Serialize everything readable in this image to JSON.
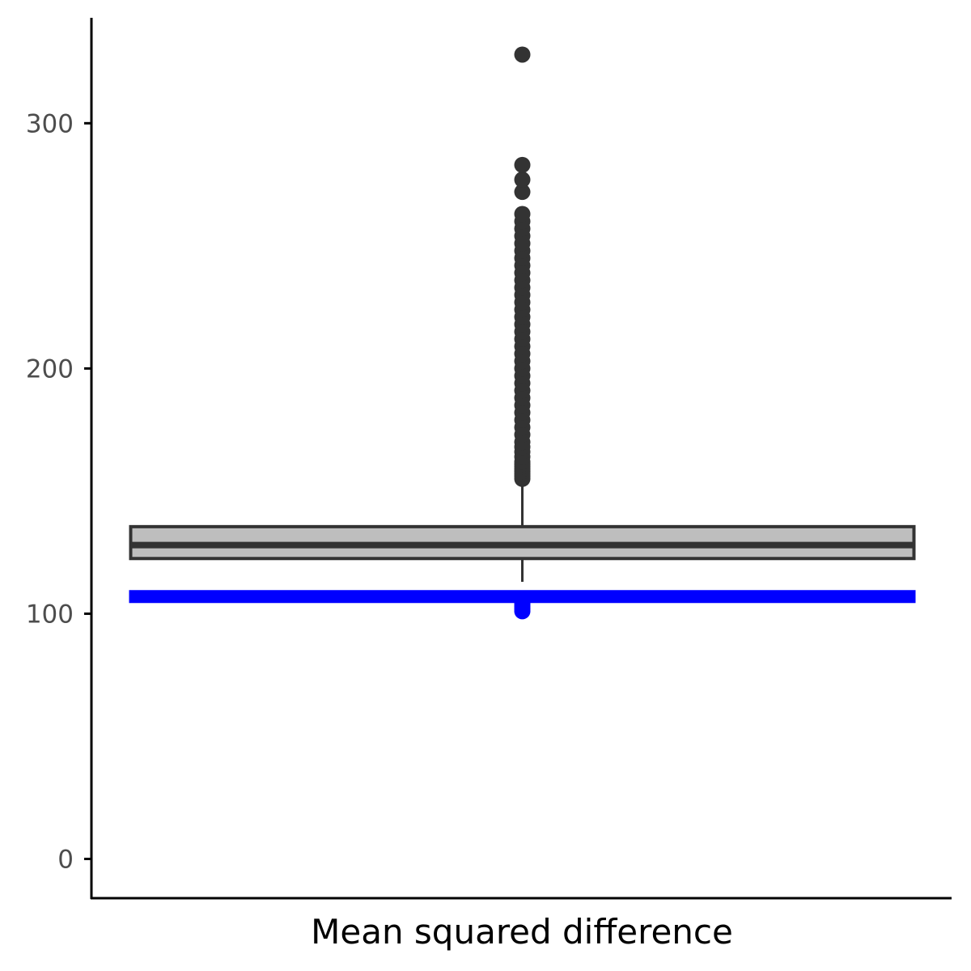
{
  "chart_data": {
    "type": "box",
    "xlabel": "Mean squared difference",
    "ylabel": "",
    "ylim": [
      -16,
      343
    ],
    "y_ticks": [
      0,
      100,
      200,
      300
    ],
    "y_tick_labels": [
      "0",
      "100",
      "200",
      "300"
    ],
    "grid": false,
    "box": {
      "q1": 122.5,
      "median": 128,
      "q3": 135.5,
      "whisker_low": 113,
      "whisker_high": 155
    },
    "outliers_high": [
      155,
      156,
      157,
      158,
      159,
      160,
      161,
      162,
      164,
      166,
      168,
      170,
      173,
      176,
      179,
      182,
      185,
      188,
      191,
      194,
      197,
      200,
      203,
      206,
      209,
      212,
      215,
      218,
      221,
      224,
      227,
      230,
      233,
      236,
      239,
      242,
      245,
      248,
      251,
      254,
      257,
      260,
      263,
      272,
      277,
      283,
      328
    ],
    "outliers_low": [
      101,
      102,
      103,
      104,
      105,
      106
    ],
    "reference_line": {
      "value": 107,
      "color": "#0000ff"
    },
    "colors": {
      "box_fill": "#bebebe",
      "box_line": "#333333",
      "outlier_high": "#333333",
      "outlier_low": "#0000ff",
      "axis": "#000000"
    }
  }
}
